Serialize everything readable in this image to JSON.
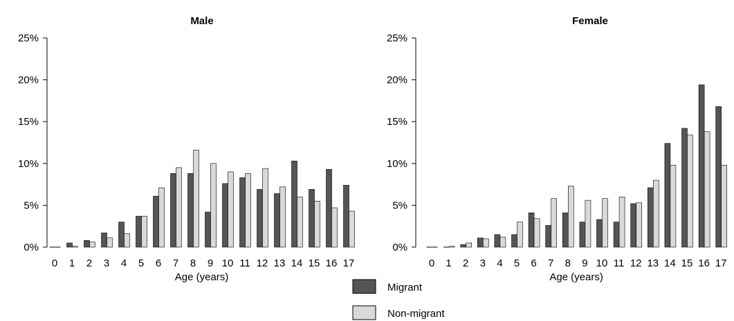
{
  "colors": {
    "migrant": "#555555",
    "non_migrant": "#d9d9d9",
    "axis": "#000000"
  },
  "legend": {
    "items": [
      {
        "label": "Migrant",
        "color": "#555555"
      },
      {
        "label": "Non-migrant",
        "color": "#d9d9d9"
      }
    ]
  },
  "chart_data": [
    {
      "type": "bar",
      "title": "Male",
      "xlabel": "Age (years)",
      "ylabel": "",
      "categories": [
        "0",
        "1",
        "2",
        "3",
        "4",
        "5",
        "6",
        "7",
        "8",
        "9",
        "10",
        "11",
        "12",
        "13",
        "14",
        "15",
        "16",
        "17"
      ],
      "yticks": [
        "0%",
        "5%",
        "10%",
        "15%",
        "20%",
        "25%"
      ],
      "ylim": [
        0,
        25
      ],
      "series": [
        {
          "name": "Migrant",
          "values": [
            0.0,
            0.5,
            0.8,
            1.7,
            3.0,
            3.7,
            6.1,
            8.8,
            8.8,
            4.2,
            7.6,
            8.3,
            6.9,
            6.4,
            10.3,
            6.9,
            9.3,
            7.4
          ]
        },
        {
          "name": "Non-migrant",
          "values": [
            0.0,
            0.1,
            0.6,
            1.1,
            1.6,
            3.7,
            7.1,
            9.5,
            11.6,
            10.0,
            9.0,
            8.8,
            9.4,
            7.2,
            6.0,
            5.5,
            4.7,
            4.3
          ]
        }
      ]
    },
    {
      "type": "bar",
      "title": "Female",
      "xlabel": "Age (years)",
      "ylabel": "",
      "categories": [
        "0",
        "1",
        "2",
        "3",
        "4",
        "5",
        "6",
        "7",
        "8",
        "9",
        "10",
        "11",
        "12",
        "13",
        "14",
        "15",
        "16",
        "17"
      ],
      "yticks": [
        "0%",
        "5%",
        "10%",
        "15%",
        "20%",
        "25%"
      ],
      "ylim": [
        0,
        25
      ],
      "series": [
        {
          "name": "Migrant",
          "values": [
            0.0,
            0.0,
            0.3,
            1.1,
            1.5,
            1.5,
            4.1,
            2.6,
            4.1,
            3.0,
            3.3,
            3.0,
            5.2,
            7.1,
            12.4,
            14.2,
            19.4,
            16.8
          ]
        },
        {
          "name": "Non-migrant",
          "values": [
            0.0,
            0.1,
            0.5,
            1.0,
            1.2,
            3.0,
            3.4,
            5.8,
            7.3,
            5.6,
            5.8,
            6.0,
            5.3,
            8.0,
            9.8,
            13.4,
            13.8,
            9.8
          ]
        }
      ]
    }
  ]
}
